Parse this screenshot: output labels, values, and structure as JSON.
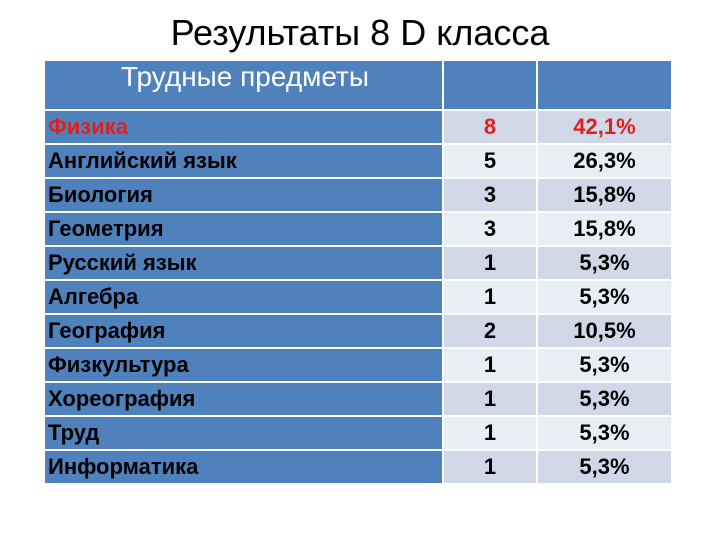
{
  "title": "Результаты 8 D класса",
  "table": {
    "header": [
      "Трудные предметы",
      "",
      ""
    ],
    "rows": [
      {
        "subject": "Физика",
        "count": "8",
        "percent": "42,1%",
        "highlight": true
      },
      {
        "subject": "Английский язык",
        "count": "5",
        "percent": "26,3%",
        "highlight": false
      },
      {
        "subject": "Биология",
        "count": "3",
        "percent": "15,8%",
        "highlight": false
      },
      {
        "subject": "Геометрия",
        "count": "3",
        "percent": "15,8%",
        "highlight": false
      },
      {
        "subject": "Русский язык",
        "count": "1",
        "percent": "5,3%",
        "highlight": false
      },
      {
        "subject": "Алгебра",
        "count": "1",
        "percent": "5,3%",
        "highlight": false
      },
      {
        "subject": "География",
        "count": "2",
        "percent": "10,5%",
        "highlight": false
      },
      {
        "subject": "Физкультура",
        "count": "1",
        "percent": "5,3%",
        "highlight": false
      },
      {
        "subject": "Хореография",
        "count": "1",
        "percent": "5,3%",
        "highlight": false
      },
      {
        "subject": "Труд",
        "count": "1",
        "percent": "5,3%",
        "highlight": false
      },
      {
        "subject": "Информатика",
        "count": "1",
        "percent": "5,3%",
        "highlight": false
      }
    ]
  },
  "colors": {
    "header_bg": "#4f81bd",
    "row_band_1": "#d0d8e8",
    "row_band_2": "#e9edf4",
    "highlight_text": "#e02020"
  }
}
